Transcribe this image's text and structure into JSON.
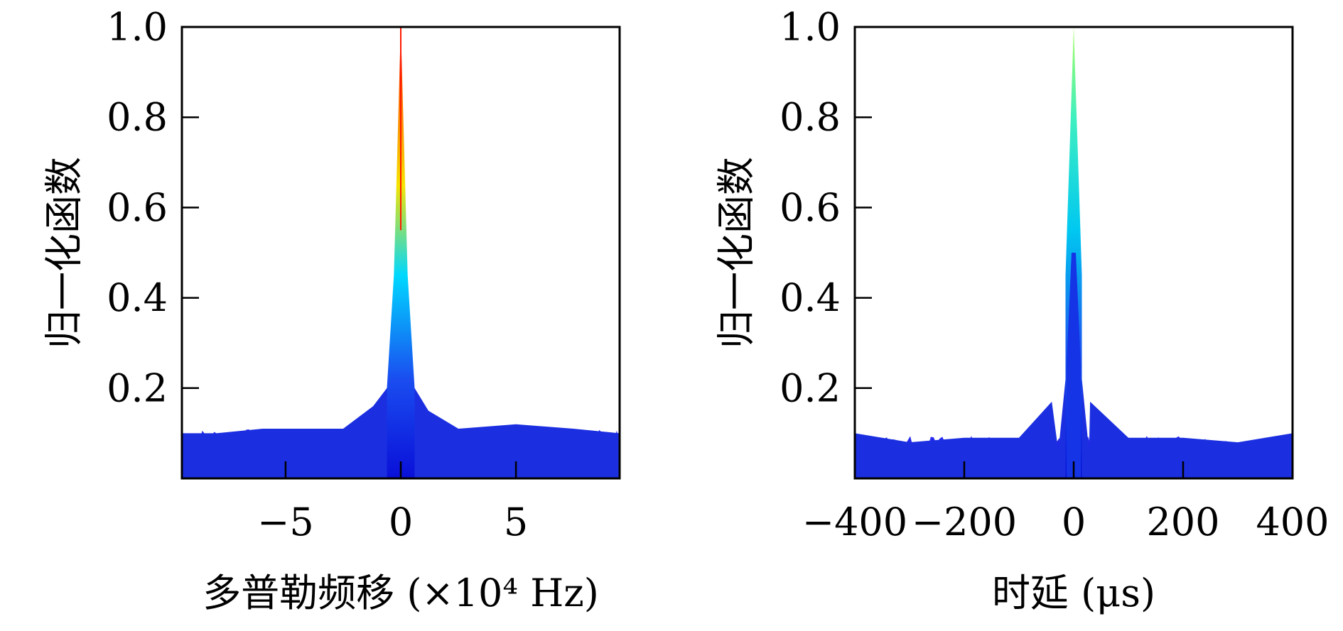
{
  "chart_data": [
    {
      "type": "area",
      "xlabel": "多普勒频移 (×10⁴ Hz)",
      "ylabel": "归一化函数",
      "xlim": [
        -9.5,
        9.5
      ],
      "ylim": [
        0,
        1.0
      ],
      "xticks": [
        {
          "value": -5,
          "label": "−5"
        },
        {
          "value": 0,
          "label": "0"
        },
        {
          "value": 5,
          "label": "5"
        }
      ],
      "yticks": [
        {
          "value": 0.2,
          "label": "0.2"
        },
        {
          "value": 0.4,
          "label": "0.4"
        },
        {
          "value": 0.6,
          "label": "0.6"
        },
        {
          "value": 0.8,
          "label": "0.8"
        },
        {
          "value": 1.0,
          "label": "1.0"
        }
      ],
      "grid": false,
      "peak": {
        "x": 0,
        "y": 1.0,
        "color": "#ff1a00"
      },
      "noise_floor": 0.09,
      "points": [
        {
          "x": -9.5,
          "y": 0.1
        },
        {
          "x": -8.0,
          "y": 0.1
        },
        {
          "x": -6.0,
          "y": 0.11
        },
        {
          "x": -4.0,
          "y": 0.11
        },
        {
          "x": -2.5,
          "y": 0.11
        },
        {
          "x": -1.2,
          "y": 0.16
        },
        {
          "x": -0.6,
          "y": 0.2
        },
        {
          "x": -0.3,
          "y": 0.45
        },
        {
          "x": 0,
          "y": 1.0
        },
        {
          "x": 0.3,
          "y": 0.45
        },
        {
          "x": 0.6,
          "y": 0.2
        },
        {
          "x": 1.2,
          "y": 0.15
        },
        {
          "x": 2.5,
          "y": 0.11
        },
        {
          "x": 5.0,
          "y": 0.12
        },
        {
          "x": 7.5,
          "y": 0.11
        },
        {
          "x": 9.5,
          "y": 0.1
        }
      ]
    },
    {
      "type": "area",
      "xlabel": "时延 (μs)",
      "ylabel": "归一化函数",
      "xlim": [
        -400,
        400
      ],
      "ylim": [
        0,
        1.0
      ],
      "xticks": [
        {
          "value": -400,
          "label": "−400"
        },
        {
          "value": -200,
          "label": "−200"
        },
        {
          "value": 0,
          "label": "0"
        },
        {
          "value": 200,
          "label": "200"
        },
        {
          "value": 400,
          "label": "400"
        }
      ],
      "yticks": [
        {
          "value": 0.2,
          "label": "0.2"
        },
        {
          "value": 0.4,
          "label": "0.4"
        },
        {
          "value": 0.6,
          "label": "0.6"
        },
        {
          "value": 0.8,
          "label": "0.8"
        },
        {
          "value": 1.0,
          "label": "1.0"
        }
      ],
      "grid": false,
      "peak": {
        "x": 0,
        "y": 1.0,
        "color": "#9aff70"
      },
      "secondary_peak": {
        "x": 0,
        "y": 0.5
      },
      "noise_floor": 0.075,
      "points": [
        {
          "x": -400,
          "y": 0.1
        },
        {
          "x": -300,
          "y": 0.08
        },
        {
          "x": -200,
          "y": 0.09
        },
        {
          "x": -100,
          "y": 0.09
        },
        {
          "x": -40,
          "y": 0.17
        },
        {
          "x": -28,
          "y": 0.06
        },
        {
          "x": -15,
          "y": 0.45
        },
        {
          "x": 0,
          "y": 1.0
        },
        {
          "x": 15,
          "y": 0.45
        },
        {
          "x": 28,
          "y": 0.06
        },
        {
          "x": 30,
          "y": 0.17
        },
        {
          "x": 100,
          "y": 0.09
        },
        {
          "x": 200,
          "y": 0.09
        },
        {
          "x": 300,
          "y": 0.08
        },
        {
          "x": 400,
          "y": 0.1
        }
      ]
    }
  ]
}
